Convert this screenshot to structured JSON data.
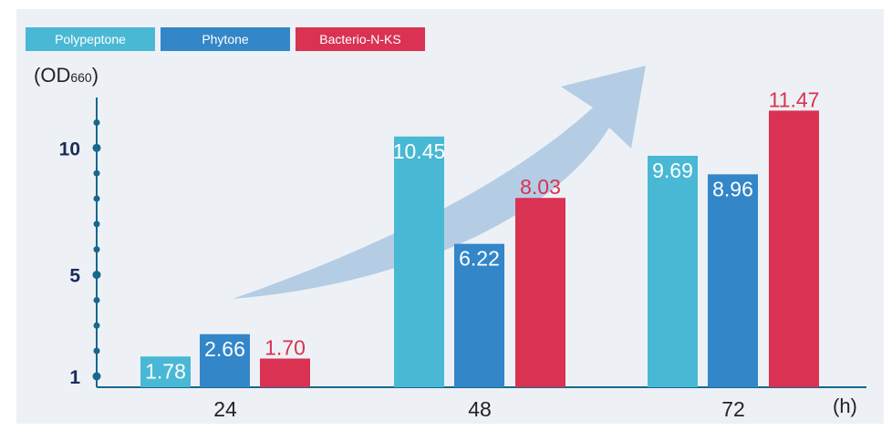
{
  "chart_data": {
    "type": "bar",
    "categories": [
      "24",
      "48",
      "72"
    ],
    "series": [
      {
        "name": "Polypeptone",
        "color": "#49b8d4",
        "values": [
          1.78,
          10.45,
          9.69
        ]
      },
      {
        "name": "Phytone",
        "color": "#3386c8",
        "values": [
          2.66,
          6.22,
          8.96
        ]
      },
      {
        "name": "Bacterio-N-KS",
        "color": "#d93252",
        "values": [
          1.7,
          8.03,
          11.47
        ]
      }
    ],
    "value_labels": [
      [
        "1.78",
        "10.45",
        "9.69"
      ],
      [
        "2.66",
        "6.22",
        "8.96"
      ],
      [
        "1.70",
        "8.03",
        "11.47"
      ]
    ],
    "label_colors": [
      "#ffffff",
      "#ffffff",
      "#d93252"
    ],
    "ylabel_main": "(OD",
    "ylabel_sub": "660",
    "ylabel_close": ")",
    "xlabel": "(h)",
    "y_ticks": [
      "1",
      "5",
      "10"
    ],
    "ylim": [
      1,
      12.5
    ],
    "minor_tick_step": 1,
    "axis_color": "#17678f",
    "trend_arrow_color": "#b4cde4",
    "grid": false,
    "legend_position": "top-left"
  }
}
